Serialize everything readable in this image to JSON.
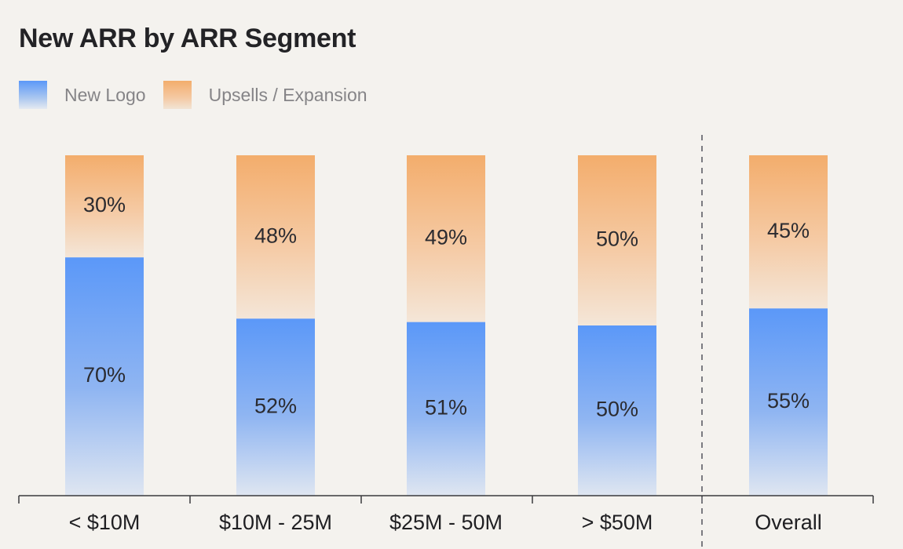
{
  "chart_data": {
    "type": "bar",
    "stacked": true,
    "title": "New ARR by ARR Segment",
    "categories": [
      "< $10M",
      "$10M - 25M",
      "$25M - 50M",
      "> $50M",
      "Overall"
    ],
    "series": [
      {
        "name": "New Logo",
        "values": [
          70,
          52,
          51,
          50,
          55
        ],
        "labels": [
          "70%",
          "52%",
          "51%",
          "50%",
          "55%"
        ],
        "color": "#5b98f8"
      },
      {
        "name": "Upsells / Expansion",
        "values": [
          30,
          48,
          49,
          50,
          45
        ],
        "labels": [
          "30%",
          "48%",
          "49%",
          "50%",
          "45%"
        ],
        "color": "#f3ad6c"
      }
    ],
    "ylim": [
      0,
      100
    ],
    "grid": false,
    "legend": "top-left",
    "divider_before_category": "Overall"
  }
}
